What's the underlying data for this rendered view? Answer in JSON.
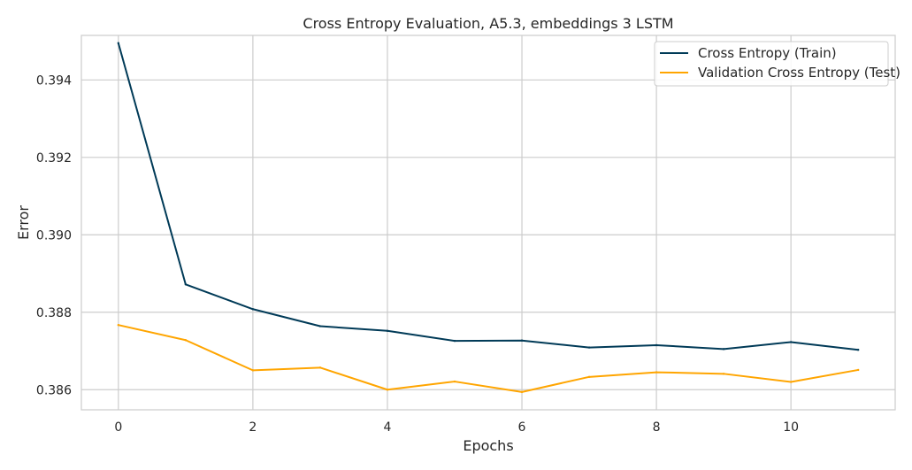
{
  "chart_data": {
    "type": "line",
    "title": "Cross Entropy Evaluation, A5.3, embeddings 3 LSTM",
    "xlabel": "Epochs",
    "ylabel": "Error",
    "xlim": [
      -0.55,
      11.55
    ],
    "ylim": [
      0.38548,
      0.39515
    ],
    "x_ticks": [
      0,
      2,
      4,
      6,
      8,
      10
    ],
    "y_ticks": [
      0.386,
      0.388,
      0.39,
      0.392,
      0.394
    ],
    "x_tick_labels": [
      "0",
      "2",
      "4",
      "6",
      "8",
      "10"
    ],
    "y_tick_labels": [
      "0.386",
      "0.388",
      "0.390",
      "0.392",
      "0.394"
    ],
    "grid": true,
    "legend_position": "top-right",
    "x": [
      0,
      1,
      2,
      3,
      4,
      5,
      6,
      7,
      8,
      9,
      10,
      11
    ],
    "series": [
      {
        "name": "Cross Entropy (Train)",
        "color": "#003a57",
        "values": [
          0.39495,
          0.38872,
          0.38808,
          0.38764,
          0.38752,
          0.38726,
          0.38727,
          0.38709,
          0.38715,
          0.38705,
          0.38723,
          0.38703
        ]
      },
      {
        "name": "Validation Cross Entropy (Test)",
        "color": "#ffa500",
        "values": [
          0.38767,
          0.38728,
          0.3865,
          0.38657,
          0.386,
          0.38621,
          0.38594,
          0.38633,
          0.38645,
          0.38641,
          0.3862,
          0.38651
        ]
      }
    ]
  }
}
